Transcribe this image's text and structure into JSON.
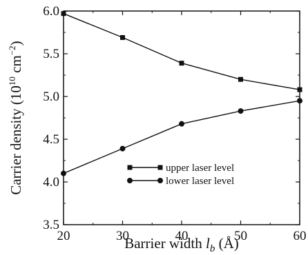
{
  "chart_data": {
    "type": "line",
    "xlabel": "Barrier width",
    "xlabel_symbol": "l",
    "xlabel_subscript": "b",
    "xlabel_unit": "(Å)",
    "ylabel": "Carrier density",
    "ylabel_unit_prefix": "(10",
    "ylabel_unit_exp": "10",
    "ylabel_unit_mid": " cm",
    "ylabel_unit_exp2": "−2",
    "ylabel_unit_suffix": ")",
    "xlim": [
      20,
      60
    ],
    "ylim": [
      3.5,
      6.0
    ],
    "x_ticks": [
      20,
      30,
      40,
      50,
      60
    ],
    "y_ticks": [
      "3.5",
      "4.0",
      "4.5",
      "5.0",
      "5.5",
      "6.0"
    ],
    "grid": false,
    "legend_position": "center-bottom",
    "series": [
      {
        "name": "upper laser level",
        "marker": "square",
        "x": [
          20,
          30,
          40,
          50,
          60
        ],
        "y": [
          5.97,
          5.69,
          5.39,
          5.2,
          5.08
        ]
      },
      {
        "name": "lower laser level",
        "marker": "circle",
        "x": [
          20,
          30,
          40,
          50,
          60
        ],
        "y": [
          4.1,
          4.39,
          4.68,
          4.83,
          4.95
        ]
      }
    ],
    "colors": {
      "line": "#111111",
      "marker": "#111111"
    }
  }
}
